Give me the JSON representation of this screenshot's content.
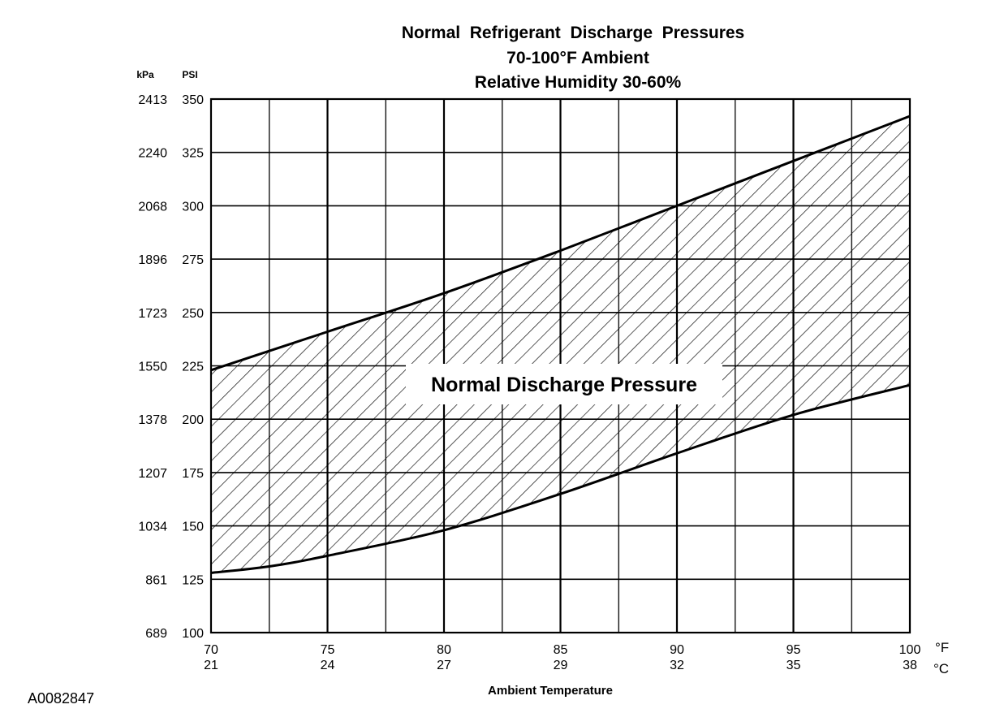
{
  "chart_data": {
    "type": "area",
    "title": "Normal  Refrigerant  Discharge  Pressures",
    "subtitle_1": "70-100°F Ambient",
    "subtitle_2": "Relative Humidity 30-60%",
    "xlabel": "Ambient Temperature",
    "x_unit_primary": "°F",
    "x_unit_secondary": "°C",
    "y_unit_primary": "PSI",
    "y_unit_secondary": "kPa",
    "xlim": [
      70,
      100
    ],
    "ylim": [
      100,
      350
    ],
    "grid": true,
    "x_ticks": [
      {
        "f": "70",
        "c": "21"
      },
      {
        "f": "75",
        "c": "24"
      },
      {
        "f": "80",
        "c": "27"
      },
      {
        "f": "85",
        "c": "29"
      },
      {
        "f": "90",
        "c": "32"
      },
      {
        "f": "95",
        "c": "35"
      },
      {
        "f": "100",
        "c": "38"
      }
    ],
    "y_ticks": [
      {
        "psi": "350",
        "kpa": "2413"
      },
      {
        "psi": "325",
        "kpa": "2240"
      },
      {
        "psi": "300",
        "kpa": "2068"
      },
      {
        "psi": "275",
        "kpa": "1896"
      },
      {
        "psi": "250",
        "kpa": "1723"
      },
      {
        "psi": "225",
        "kpa": "1550"
      },
      {
        "psi": "200",
        "kpa": "1378"
      },
      {
        "psi": "175",
        "kpa": "1207"
      },
      {
        "psi": "150",
        "kpa": "1034"
      },
      {
        "psi": "125",
        "kpa": "861"
      },
      {
        "psi": "100",
        "kpa": "689"
      }
    ],
    "band_label": "Normal Discharge Pressure",
    "upper_bound": [
      {
        "x": 70,
        "y": 223
      },
      {
        "x": 75,
        "y": 241
      },
      {
        "x": 80,
        "y": 259
      },
      {
        "x": 85,
        "y": 279
      },
      {
        "x": 90,
        "y": 300
      },
      {
        "x": 95,
        "y": 321
      },
      {
        "x": 100,
        "y": 342
      }
    ],
    "lower_bound": [
      {
        "x": 70,
        "y": 128
      },
      {
        "x": 72.5,
        "y": 131
      },
      {
        "x": 75,
        "y": 136
      },
      {
        "x": 80,
        "y": 148
      },
      {
        "x": 85,
        "y": 165
      },
      {
        "x": 90,
        "y": 184
      },
      {
        "x": 95,
        "y": 202
      },
      {
        "x": 100,
        "y": 216
      }
    ]
  },
  "figure_code": "A0082847"
}
